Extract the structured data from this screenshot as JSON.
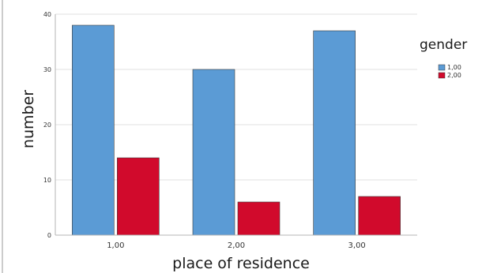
{
  "chart_data": {
    "type": "bar",
    "categories": [
      "1,00",
      "2,00",
      "3,00"
    ],
    "series": [
      {
        "name": "1,00",
        "values": [
          38,
          30,
          37
        ],
        "color": "#5b9bd5"
      },
      {
        "name": "2,00",
        "values": [
          14,
          6,
          7
        ],
        "color": "#d10a2c"
      }
    ],
    "xlabel": "place of residence",
    "ylabel": "number",
    "ylim": [
      0,
      40
    ],
    "yticks": [
      {
        "value": 0,
        "label": "0"
      },
      {
        "value": 10,
        "label": "10"
      },
      {
        "value": 20,
        "label": "20"
      },
      {
        "value": 30,
        "label": "30"
      },
      {
        "value": 40,
        "label": "40"
      }
    ],
    "grid": true,
    "legend": {
      "title": "gender",
      "placement": "right"
    }
  }
}
